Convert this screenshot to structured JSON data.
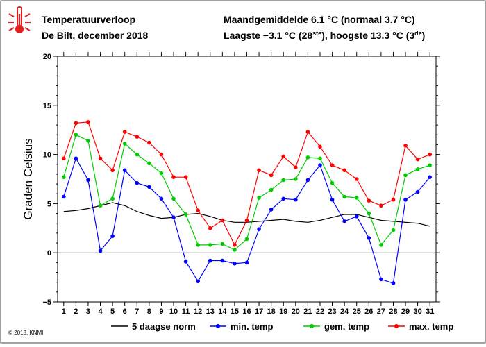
{
  "header": {
    "title": "Temperatuurverloop",
    "location": "De Bilt, december 2018",
    "line1": "Maandgemiddelde 6.1 °C (normaal 3.7 °C)",
    "line2_a": "Laagste −3.1 °C (28",
    "line2_sup1": "ste",
    "line2_b": "), hoogste 13.3 °C (3",
    "line2_sup2": "de",
    "line2_c": ")"
  },
  "footer": {
    "copyright": "© 2018, KNMI"
  },
  "icon": "thermometer-hot-icon",
  "chart_data": {
    "type": "line",
    "ylabel": "Graden Celsius",
    "xlabel": "",
    "ylim": [
      -5,
      20
    ],
    "yticks": [
      -5,
      0,
      5,
      10,
      15,
      20
    ],
    "x": [
      1,
      2,
      3,
      4,
      5,
      6,
      7,
      8,
      9,
      10,
      11,
      12,
      13,
      14,
      15,
      16,
      17,
      18,
      19,
      20,
      21,
      22,
      23,
      24,
      25,
      26,
      27,
      28,
      29,
      30,
      31
    ],
    "series": [
      {
        "name": "5 daagse norm",
        "color": "#000000",
        "markers": false,
        "values": [
          4.2,
          4.3,
          4.5,
          4.8,
          5.1,
          4.8,
          4.2,
          3.8,
          3.5,
          3.6,
          3.9,
          4.0,
          3.7,
          3.3,
          3.1,
          3.1,
          3.2,
          3.3,
          3.4,
          3.2,
          3.1,
          3.3,
          3.6,
          3.9,
          3.9,
          3.6,
          3.3,
          3.2,
          3.1,
          3.0,
          2.7
        ]
      },
      {
        "name": "min. temp",
        "color": "#0000ff",
        "markers": true,
        "values": [
          5.7,
          9.6,
          7.4,
          0.2,
          1.7,
          8.4,
          7.1,
          6.7,
          5.5,
          3.6,
          -0.9,
          -2.9,
          -0.8,
          -0.8,
          -1.1,
          -1.0,
          2.4,
          4.4,
          5.5,
          5.4,
          7.4,
          8.9,
          5.4,
          3.2,
          3.7,
          1.5,
          -2.7,
          -3.1,
          5.4,
          6.2,
          7.7
        ]
      },
      {
        "name": "gem. temp",
        "color": "#00cc00",
        "markers": true,
        "values": [
          7.7,
          12.0,
          11.4,
          4.8,
          5.5,
          11.1,
          10.0,
          9.1,
          8.1,
          5.5,
          3.9,
          0.8,
          0.8,
          0.9,
          0.3,
          1.4,
          5.6,
          6.4,
          7.4,
          7.5,
          9.7,
          9.6,
          7.1,
          5.7,
          5.6,
          4.0,
          0.8,
          2.3,
          7.9,
          8.5,
          8.9
        ]
      },
      {
        "name": "max. temp",
        "color": "#ff0000",
        "markers": true,
        "values": [
          9.6,
          13.2,
          13.3,
          9.6,
          8.4,
          12.3,
          11.8,
          11.2,
          10.0,
          7.7,
          7.7,
          4.3,
          2.5,
          3.3,
          0.8,
          3.3,
          8.4,
          7.9,
          9.8,
          8.7,
          12.3,
          10.8,
          8.9,
          8.4,
          7.5,
          5.3,
          4.8,
          5.4,
          10.9,
          9.5,
          10.0
        ]
      }
    ],
    "grid": false,
    "legend_position": "bottom"
  }
}
